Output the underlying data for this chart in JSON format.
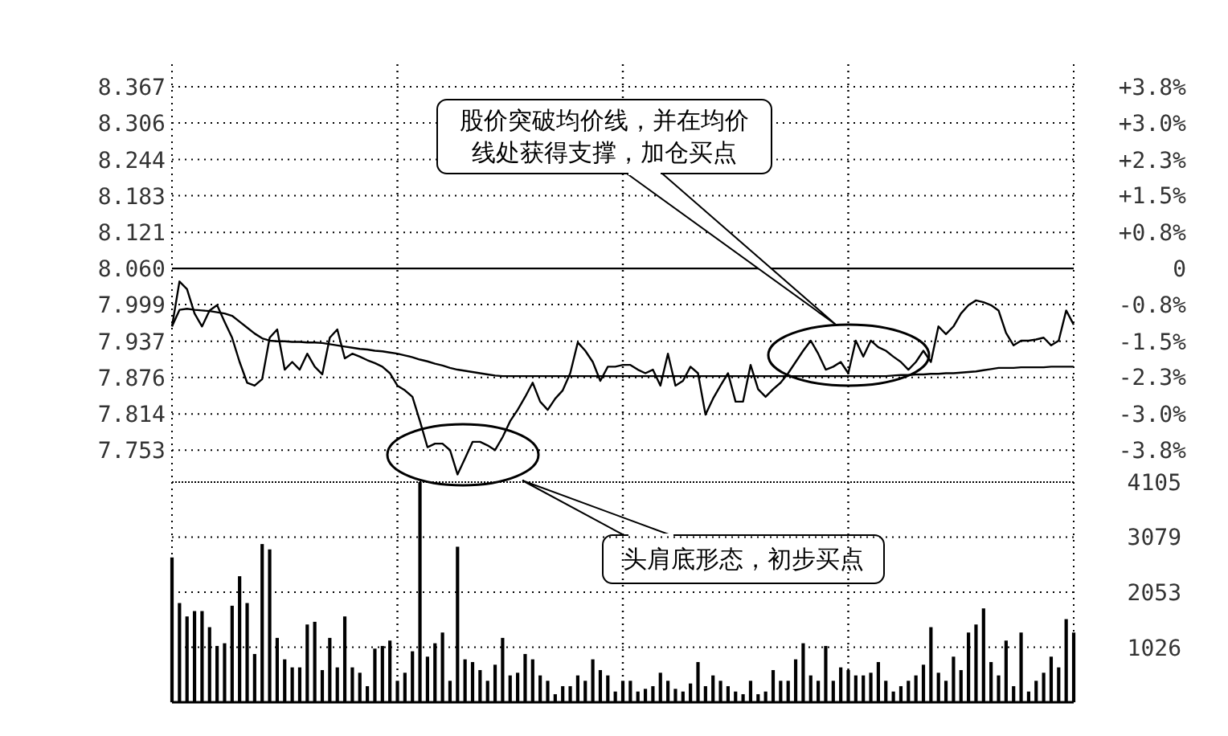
{
  "chart_data": [
    {
      "type": "line",
      "categories": [
        null,
        null,
        null,
        null,
        null,
        null,
        null,
        null,
        null,
        null,
        null,
        null,
        null,
        null,
        null,
        null,
        null,
        null,
        null,
        null,
        null,
        null,
        null,
        null,
        null,
        null,
        null,
        null,
        null,
        null,
        null,
        null,
        null,
        null,
        null,
        null,
        null,
        null,
        null,
        null,
        null,
        null,
        null,
        null,
        null,
        null,
        null,
        null,
        null,
        null,
        null,
        null,
        null,
        null,
        null,
        null,
        null,
        null,
        null,
        null,
        null,
        null,
        null,
        null,
        null,
        null,
        null,
        null,
        null,
        null,
        null,
        null,
        null,
        null,
        null,
        null,
        null,
        null,
        null,
        null,
        null,
        null,
        null,
        null,
        null,
        null,
        null,
        null,
        null,
        null,
        null,
        null,
        null,
        null,
        null,
        null,
        null,
        null,
        null,
        null,
        null,
        null,
        null,
        null,
        null,
        null,
        null,
        null,
        null,
        null,
        null,
        null,
        null,
        null,
        null,
        null,
        null,
        null,
        null,
        null,
        null
      ],
      "series": [
        {
          "color": "#000000",
          "values": [
            7.962,
            8.038,
            8.025,
            7.984,
            7.962,
            7.989,
            7.998,
            7.97,
            7.943,
            7.902,
            7.867,
            7.862,
            7.873,
            7.943,
            7.957,
            7.889,
            7.902,
            7.889,
            7.916,
            7.894,
            7.881,
            7.943,
            7.957,
            7.908,
            7.916,
            7.911,
            7.905,
            7.9,
            7.894,
            7.883,
            7.862,
            7.854,
            7.843,
            7.802,
            7.758,
            7.764,
            7.764,
            7.753,
            7.712,
            7.739,
            7.767,
            7.767,
            7.761,
            7.753,
            7.775,
            7.802,
            7.821,
            7.843,
            7.867,
            7.835,
            7.821,
            7.84,
            7.854,
            7.883,
            7.935,
            7.921,
            7.902,
            7.87,
            7.894,
            7.894,
            7.897,
            7.897,
            7.889,
            7.883,
            7.889,
            7.862,
            7.916,
            7.862,
            7.87,
            7.894,
            7.883,
            7.813,
            7.84,
            7.862,
            7.883,
            7.835,
            7.835,
            7.897,
            7.856,
            7.843,
            7.856,
            7.867,
            7.883,
            7.902,
            7.921,
            7.938,
            7.916,
            7.889,
            7.894,
            7.902,
            7.883,
            7.938,
            7.911,
            7.938,
            7.927,
            7.921,
            7.911,
            7.902,
            7.889,
            7.902,
            7.921,
            7.902,
            7.962,
            7.949,
            7.962,
            7.984,
            7.998,
            8.006,
            8.003,
            7.998,
            7.989,
            7.951,
            7.93,
            7.938,
            7.938,
            7.94,
            7.943,
            7.93,
            7.938,
            7.989,
            7.965
          ]
        },
        {
          "color": "#000000",
          "values": [
            7.962,
            7.99,
            7.992,
            7.99,
            7.989,
            7.988,
            7.986,
            7.984,
            7.98,
            7.97,
            7.96,
            7.95,
            7.942,
            7.938,
            7.937,
            7.937,
            7.936,
            7.936,
            7.935,
            7.935,
            7.934,
            7.932,
            7.93,
            7.928,
            7.926,
            7.924,
            7.923,
            7.921,
            7.92,
            7.918,
            7.916,
            7.913,
            7.91,
            7.906,
            7.903,
            7.899,
            7.896,
            7.892,
            7.889,
            7.887,
            7.885,
            7.883,
            7.881,
            7.879,
            7.878,
            7.878,
            7.878,
            7.878,
            7.878,
            7.878,
            7.878,
            7.878,
            7.878,
            7.878,
            7.878,
            7.878,
            7.878,
            7.878,
            7.878,
            7.878,
            7.878,
            7.878,
            7.878,
            7.878,
            7.878,
            7.878,
            7.878,
            7.878,
            7.878,
            7.878,
            7.878,
            7.878,
            7.878,
            7.878,
            7.878,
            7.878,
            7.878,
            7.878,
            7.878,
            7.878,
            7.878,
            7.878,
            7.878,
            7.878,
            7.878,
            7.878,
            7.878,
            7.878,
            7.878,
            7.878,
            7.878,
            7.878,
            7.878,
            7.878,
            7.878,
            7.878,
            7.879,
            7.88,
            7.88,
            7.881,
            7.881,
            7.882,
            7.882,
            7.883,
            7.883,
            7.884,
            7.885,
            7.886,
            7.888,
            7.89,
            7.892,
            7.892,
            7.892,
            7.893,
            7.893,
            7.893,
            7.893,
            7.894,
            7.894,
            7.894,
            7.894
          ]
        }
      ],
      "ylim": [
        7.699,
        8.405
      ],
      "yticks": [
        8.367,
        8.306,
        8.244,
        8.183,
        8.121,
        {
          "value": 8.06,
          "label": "8.060"
        },
        7.999,
        7.937,
        7.876,
        7.814,
        7.753
      ],
      "y2lim": [
        -4.479,
        4.28
      ],
      "y2ticks": [
        {
          "value": 3.81,
          "label": "+3.8%"
        },
        {
          "value": 3.05,
          "label": "+3.0%"
        },
        {
          "value": 2.28,
          "label": "+2.3%"
        },
        {
          "value": 1.53,
          "label": "+1.5%"
        },
        {
          "value": 0.76,
          "label": "+0.8%"
        },
        0,
        {
          "value": -0.76,
          "label": "-0.8%"
        },
        {
          "value": -1.53,
          "label": "-1.5%"
        },
        {
          "value": -2.28,
          "label": "-2.3%"
        },
        {
          "value": -3.05,
          "label": "-3.0%"
        },
        {
          "value": -3.81,
          "label": "-3.8%"
        }
      ],
      "ref_lines": [
        {
          "axis": "y",
          "value": 8.06,
          "color": "#000000",
          "line_style": "solid"
        }
      ],
      "grid": true,
      "annotations": [
        "股价突破均价线，并在均价线处获得支撑，加仓买点",
        "头肩底形态，初步买点"
      ]
    },
    {
      "type": "bar",
      "categories": [
        null,
        null,
        null,
        null,
        null,
        null,
        null,
        null,
        null,
        null,
        null,
        null,
        null,
        null,
        null,
        null,
        null,
        null,
        null,
        null,
        null,
        null,
        null,
        null,
        null,
        null,
        null,
        null,
        null,
        null,
        null,
        null,
        null,
        null,
        null,
        null,
        null,
        null,
        null,
        null,
        null,
        null,
        null,
        null,
        null,
        null,
        null,
        null,
        null,
        null,
        null,
        null,
        null,
        null,
        null,
        null,
        null,
        null,
        null,
        null,
        null,
        null,
        null,
        null,
        null,
        null,
        null,
        null,
        null,
        null,
        null,
        null,
        null,
        null,
        null,
        null,
        null,
        null,
        null,
        null,
        null,
        null,
        null,
        null,
        null,
        null,
        null,
        null,
        null,
        null,
        null,
        null,
        null,
        null,
        null,
        null,
        null,
        null,
        null,
        null,
        null,
        null,
        null,
        null,
        null,
        null,
        null,
        null,
        null,
        null,
        null,
        null,
        null,
        null,
        null,
        null,
        null,
        null,
        null,
        null,
        null
      ],
      "color": "#000000",
      "values": [
        2700,
        1850,
        1600,
        1700,
        1700,
        1400,
        1050,
        1100,
        1800,
        2350,
        1850,
        900,
        2950,
        2850,
        1200,
        800,
        650,
        650,
        1450,
        1500,
        600,
        1200,
        650,
        1600,
        650,
        550,
        300,
        1000,
        1050,
        1150,
        400,
        550,
        950,
        4105,
        850,
        1100,
        1300,
        400,
        2900,
        800,
        750,
        600,
        400,
        700,
        1200,
        500,
        550,
        900,
        800,
        500,
        400,
        150,
        300,
        300,
        500,
        400,
        800,
        600,
        500,
        200,
        400,
        400,
        200,
        250,
        300,
        550,
        400,
        250,
        200,
        350,
        750,
        300,
        500,
        400,
        300,
        200,
        150,
        400,
        150,
        200,
        600,
        400,
        400,
        800,
        1100,
        500,
        400,
        1050,
        400,
        650,
        600,
        500,
        500,
        550,
        750,
        400,
        200,
        300,
        400,
        500,
        700,
        1400,
        550,
        400,
        850,
        600,
        1300,
        1450,
        1750,
        750,
        500,
        1150,
        300,
        1300,
        200,
        400,
        550,
        850,
        650,
        1550,
        1300
      ],
      "ylim": [
        0,
        4105
      ],
      "yticks": [
        1026,
        2053,
        3079,
        4105
      ],
      "grid": true
    }
  ]
}
